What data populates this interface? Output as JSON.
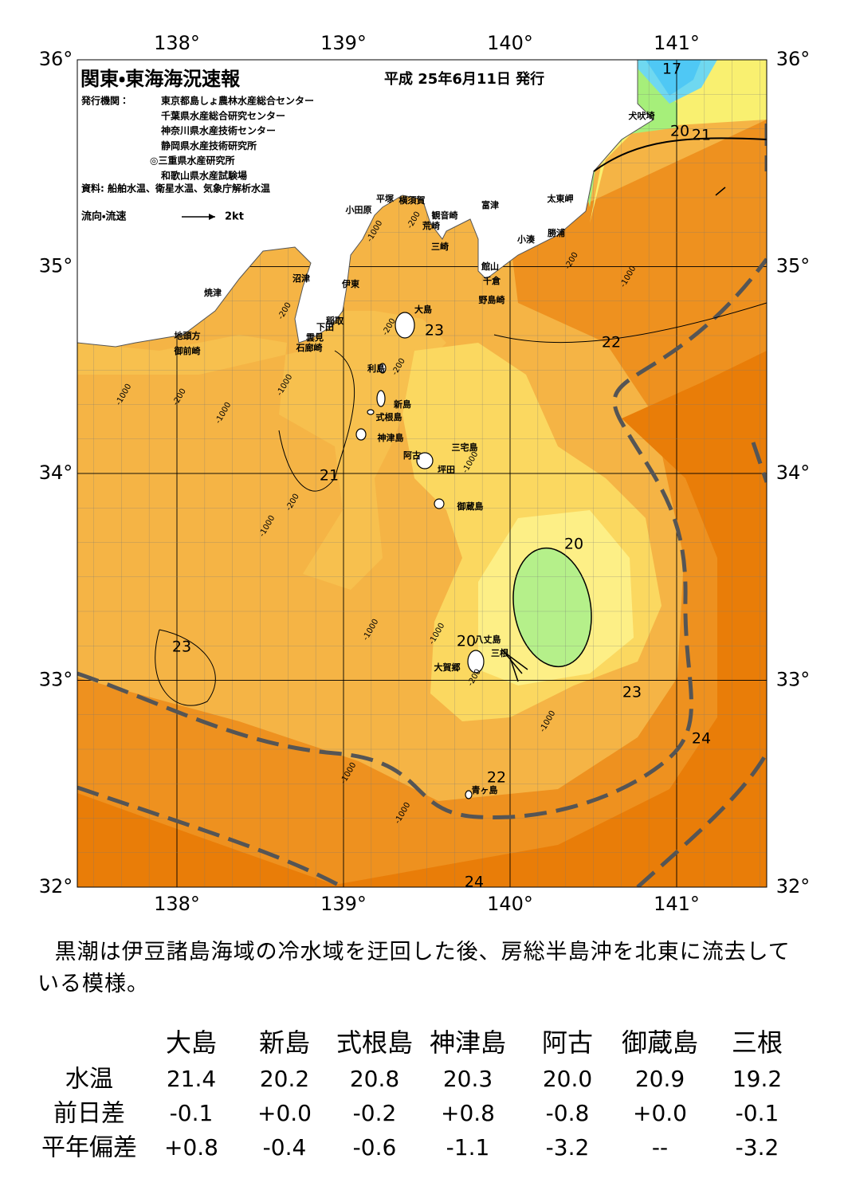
{
  "header": {
    "title": "関東・東海海況速報",
    "issue_date": "平成 25年6月11日 発行",
    "publisher_label": "発行機関：",
    "publishers": [
      "東京都島しょ農林水産総合センター",
      "千葉県水産総合研究センター",
      "神奈川県水産技術センター",
      "静岡県水産技術研究所",
      "◎三重県水産研究所",
      "和歌山県水産試験場"
    ],
    "sources": "資料: 船舶水温、衛星水温、気象庁解析水温",
    "current_legend": "流向・流速",
    "current_scale": "2kt"
  },
  "map": {
    "longitude_labels": [
      "138°",
      "139°",
      "140°",
      "141°"
    ],
    "latitude_labels": [
      "36°",
      "35°",
      "34°",
      "33°",
      "32°"
    ],
    "place_names": [
      "犬吠埼",
      "太東岬",
      "勝浦",
      "小湊",
      "富津",
      "横須賀",
      "観音崎",
      "荒崎",
      "三崎",
      "平塚",
      "小田原",
      "館山",
      "千倉",
      "野島崎",
      "沼津",
      "伊東",
      "焼津",
      "稲取",
      "下田",
      "雲見",
      "石廊崎",
      "地頭方",
      "御前崎",
      "大島",
      "利島",
      "新島",
      "式根島",
      "神津島",
      "三宅島",
      "阿古",
      "坪田",
      "御蔵島",
      "八丈島",
      "三根",
      "大賀郷",
      "青ヶ島"
    ],
    "isotherm_labels": [
      17,
      20,
      21,
      23,
      22,
      21,
      20,
      23,
      20,
      23,
      24,
      22,
      24
    ],
    "depth_labels": [
      "-200",
      "-1000",
      "-200",
      "-1000",
      "-200",
      "-1000",
      "-200",
      "-200",
      "-1000",
      "-200",
      "-1000",
      "-200",
      "-1000",
      "-1000",
      "-1000",
      "-1000",
      "-200",
      "-1000",
      "-1000",
      "-1000"
    ]
  },
  "summary": "黒潮は伊豆諸島海域の冷水域を迂回した後、房総半島沖を北東に流去している模様。",
  "table": {
    "columns": [
      "大島",
      "新島",
      "式根島",
      "神津島",
      "阿古",
      "御蔵島",
      "三根"
    ],
    "rows": [
      {
        "label": "水温",
        "cells": [
          "21.4",
          "20.2",
          "20.8",
          "20.3",
          "20.0",
          "20.9",
          "19.2"
        ]
      },
      {
        "label": "前日差",
        "cells": [
          "-0.1",
          "+0.0",
          "-0.2",
          "+0.8",
          "-0.8",
          "+0.0",
          "-0.1"
        ]
      },
      {
        "label": "平年偏差",
        "cells": [
          "+0.8",
          "-0.4",
          "-0.6",
          "-1.1",
          "-3.2",
          "--",
          "-3.2"
        ]
      }
    ]
  }
}
